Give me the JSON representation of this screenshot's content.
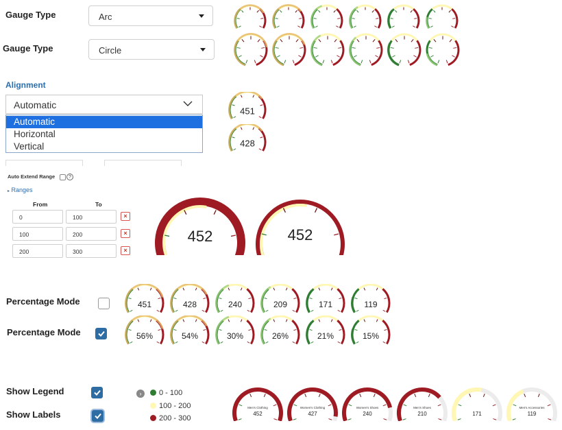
{
  "gauge_type_rows": [
    {
      "label": "Gauge Type",
      "value": "Arc"
    },
    {
      "label": "Gauge Type",
      "value": "Circle"
    }
  ],
  "alignment": {
    "title": "Alignment",
    "selected": "Automatic",
    "options": [
      "Automatic",
      "Horizontal",
      "Vertical"
    ]
  },
  "small_gauges": [
    "451",
    "428"
  ],
  "auto_extend": {
    "label": "Auto Extend Range",
    "help": "?"
  },
  "ranges": {
    "toggle": "Ranges",
    "from_header": "From",
    "to_header": "To",
    "rows": [
      {
        "from": "0",
        "to": "100",
        "delete": "×"
      },
      {
        "from": "100",
        "to": "200",
        "delete": "×"
      },
      {
        "from": "200",
        "to": "300",
        "delete": "×"
      }
    ]
  },
  "big_gauges": [
    "452",
    "452"
  ],
  "percentage_rows": [
    {
      "label": "Percentage Mode",
      "checked": false,
      "values": [
        "451",
        "428",
        "240",
        "209",
        "171",
        "119"
      ]
    },
    {
      "label": "Percentage Mode",
      "checked": true,
      "values": [
        "56%",
        "54%",
        "30%",
        "26%",
        "21%",
        "15%"
      ]
    }
  ],
  "show_legend": {
    "label": "Show Legend",
    "checked": true
  },
  "show_labels": {
    "label": "Show Labels",
    "checked": true
  },
  "legend": {
    "items": [
      {
        "label": "0 - 100",
        "color": "#2e7d32"
      },
      {
        "label": "100 - 200",
        "color": "#fff7b3"
      },
      {
        "label": "200 - 300",
        "color": "#9e1b24"
      }
    ]
  },
  "labeled_gauges": [
    {
      "label": "Men's Clothing",
      "value": "452"
    },
    {
      "label": "Women's Clothing",
      "value": "427"
    },
    {
      "label": "Women's Shoes",
      "value": "240"
    },
    {
      "label": "Men's Shoes",
      "value": "210"
    },
    {
      "label": "",
      "value": "171"
    },
    {
      "label": "Men's Accessories",
      "value": "119"
    }
  ],
  "colors": {
    "red": "#9e1b24",
    "green": "#2e7d32",
    "lightgreen": "#9bd17a",
    "orange": "#e6b866",
    "yellow": "#fff7b3",
    "tick": "#5c1a1a",
    "accent": "#1e6fe0",
    "link": "#2a6fb0"
  }
}
